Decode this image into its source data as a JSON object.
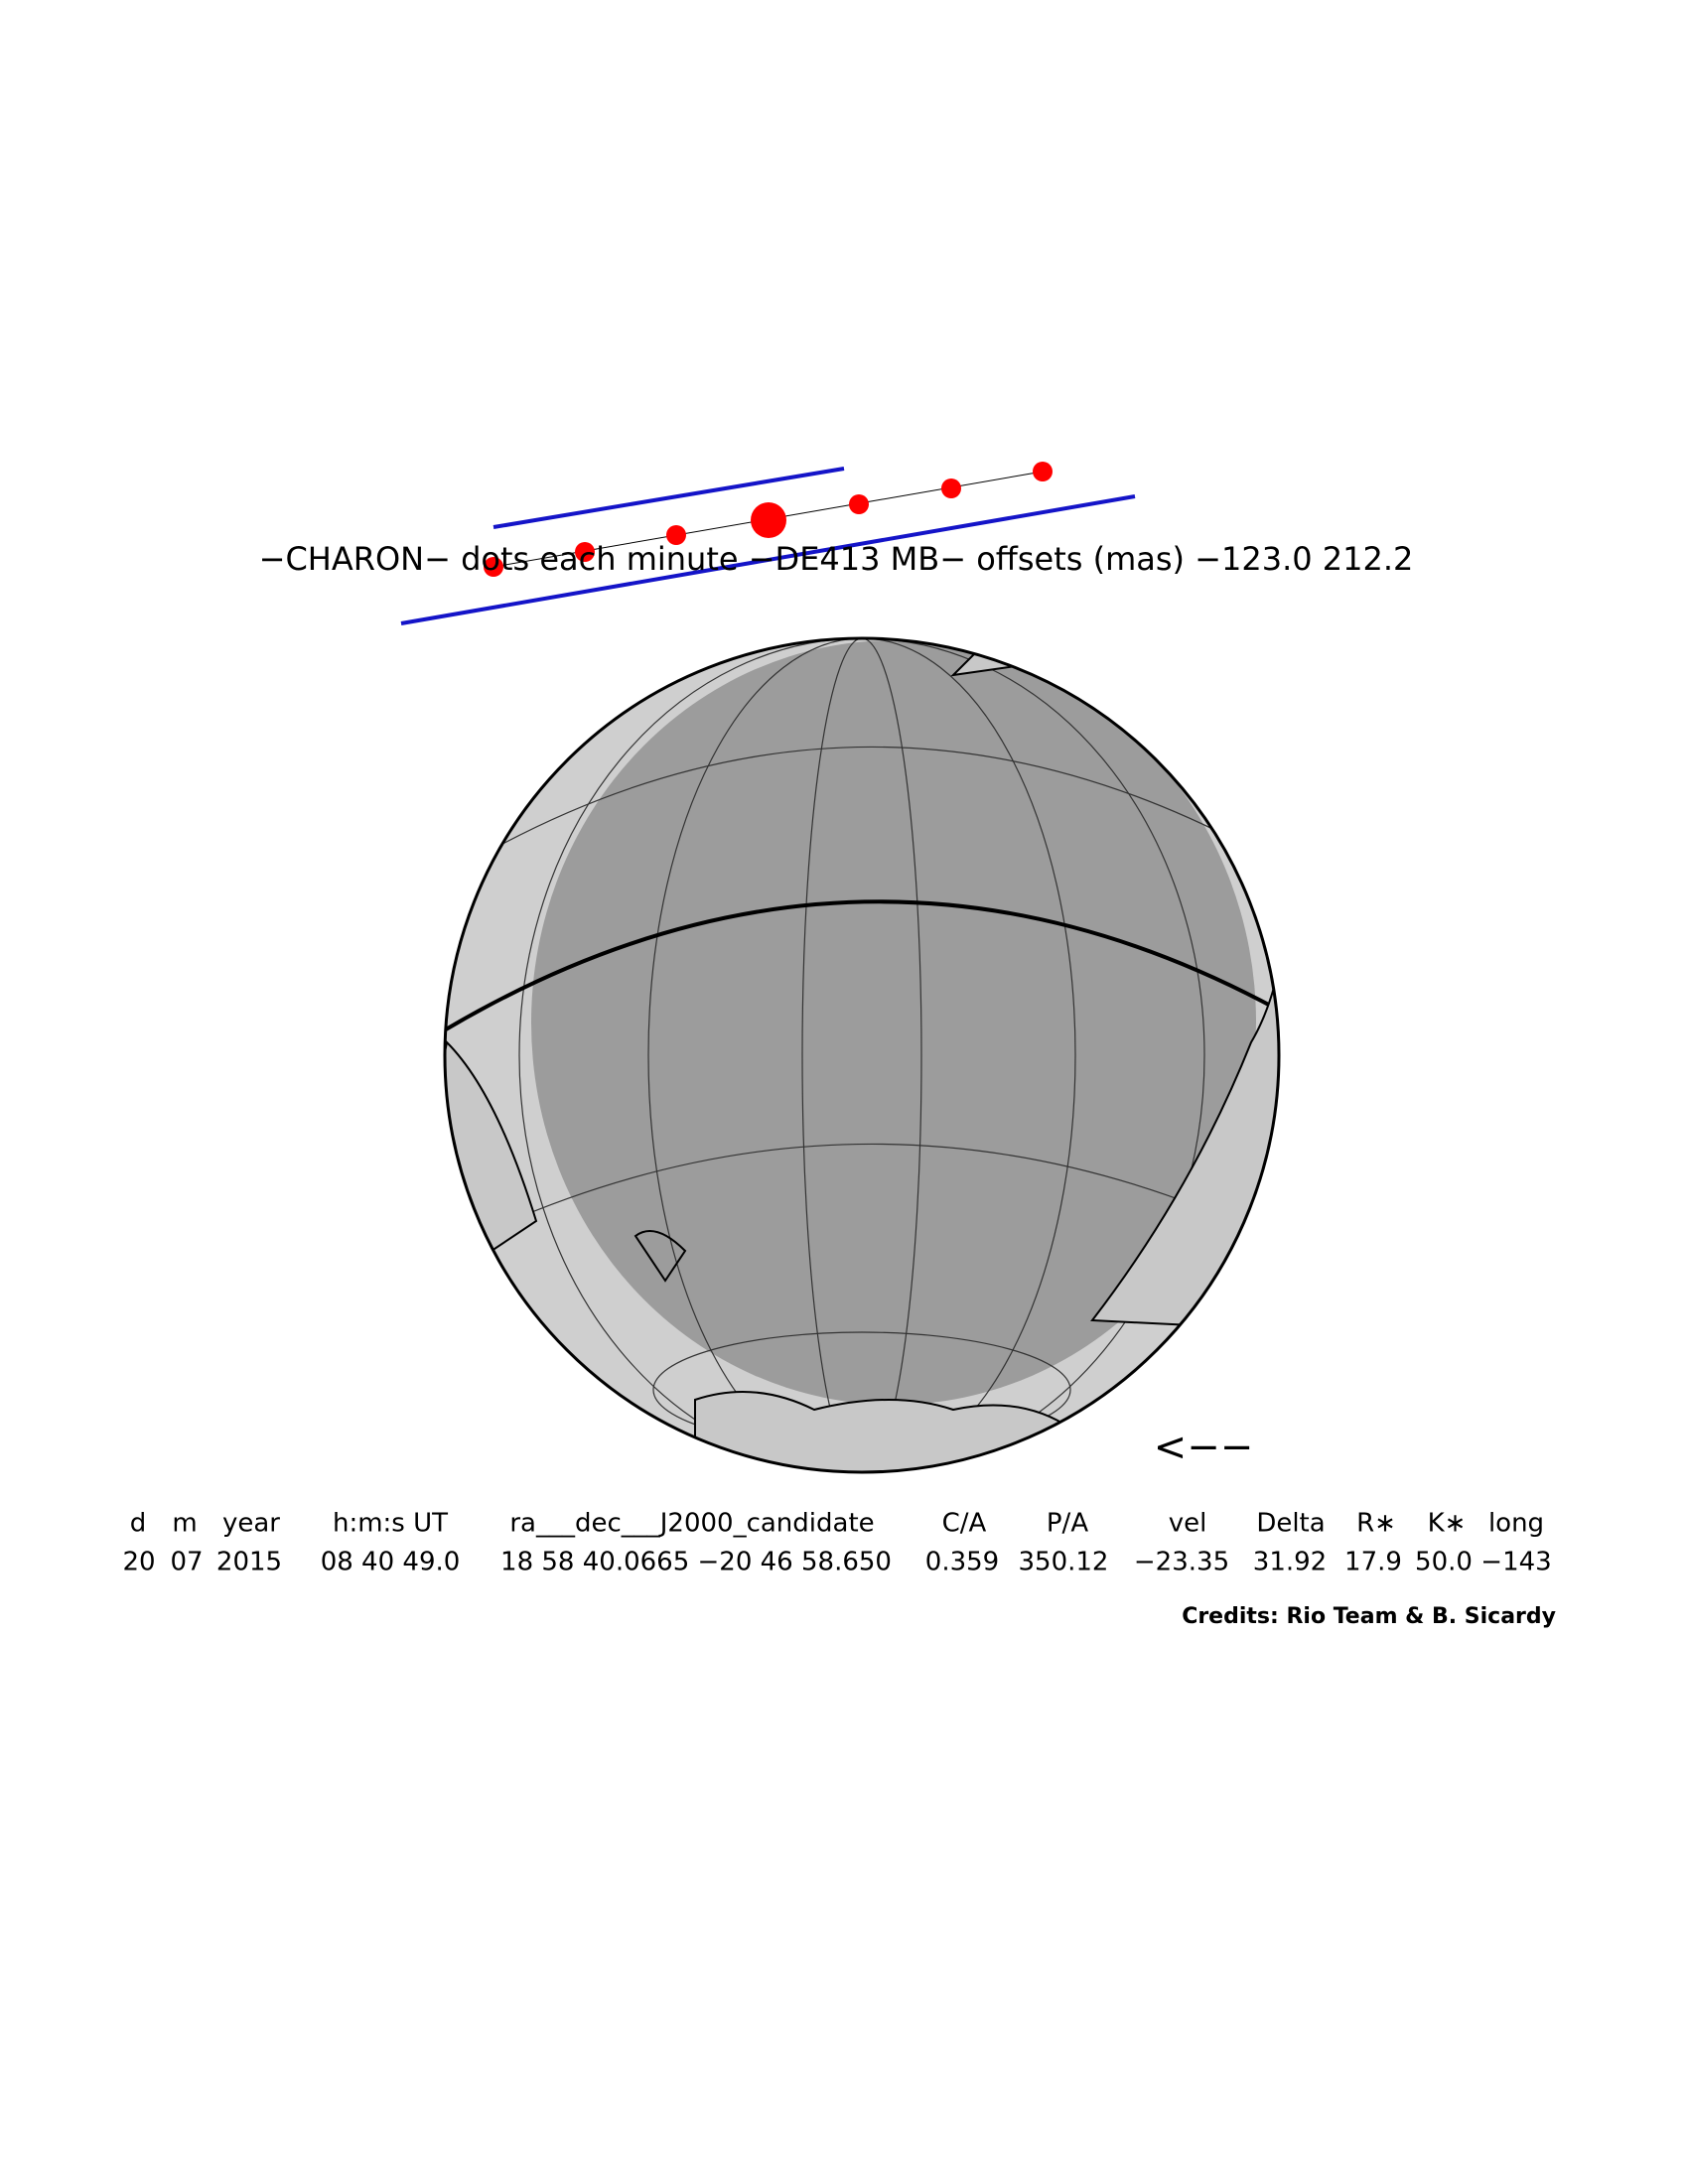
{
  "header": {
    "title": "−CHARON− dots each minute −DE413 MB− offsets (mas) −123.0   212.2"
  },
  "arrow": "<−−",
  "table": {
    "columns": [
      "d",
      "m",
      "year",
      "h:m:s UT",
      "ra___dec___J2000_candidate",
      "C/A",
      "P/A",
      "vel",
      "Delta",
      "R∗",
      "K∗",
      "long"
    ],
    "values": [
      "20",
      "07",
      "2015",
      "08 40 49.0",
      "18 58 40.0665 −20 46 58.650",
      "0.359",
      "350.12",
      "−23.35",
      "31.92",
      "17.9",
      "50.0",
      "−143"
    ]
  },
  "credits": "Credits: Rio Team & B. Sicardy"
}
